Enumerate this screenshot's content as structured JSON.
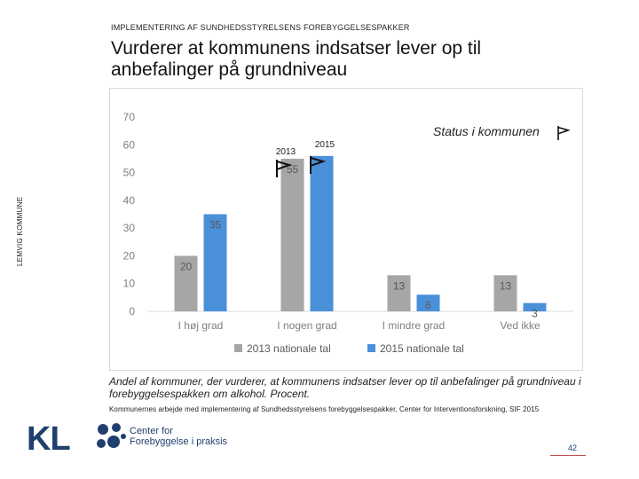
{
  "header": {
    "small": "IMPLEMENTERING AF SUNDHEDSSTYRELSENS FOREBYGGELSESPAKKER"
  },
  "title_line1": "Vurderer at kommunens indsatser lever op til",
  "title_line2": "anbefalinger på grundniveau",
  "side_label": "LEMVIG KOMMUNE",
  "status_text": "Status i kommunen",
  "caption_line1": "Andel af kommuner, der vurderer, at kommunens indsatser lever op til anbefalinger på grundniveau i",
  "caption_line2": "forebyggelsespakken om alkohol. Procent.",
  "source": "Kommunernes arbejde med implementering af Sundhedsstyrelsens forebyggelsespakker, Center for Interventionsforskning, SIF 2015",
  "logo_kl": "KL",
  "logo_cfp_line1": "Center for",
  "logo_cfp_line2": "Forebyggelse i praksis",
  "page_number": "42",
  "colors": {
    "series2013": "#a6a6a6",
    "series2015": "#4a90d9",
    "accent": "#c0504d"
  },
  "chart_data": {
    "type": "bar",
    "categories": [
      "I høj grad",
      "I nogen grad",
      "I mindre grad",
      "Ved ikke"
    ],
    "series": [
      {
        "name": "2013 nationale tal",
        "values": [
          20,
          55,
          13,
          13
        ]
      },
      {
        "name": "2015 nationale tal",
        "values": [
          35,
          56,
          6,
          3
        ]
      }
    ],
    "data_labels": [
      [
        "20",
        "55",
        "13",
        "13"
      ],
      [
        "35",
        "",
        "6",
        "3"
      ]
    ],
    "ylim": [
      0,
      70
    ],
    "yticks": [
      "0",
      "10",
      "20",
      "30",
      "40",
      "50",
      "60",
      "70"
    ],
    "annotations": [
      "2013",
      "2015"
    ],
    "legend_position": "bottom",
    "grid": false
  }
}
